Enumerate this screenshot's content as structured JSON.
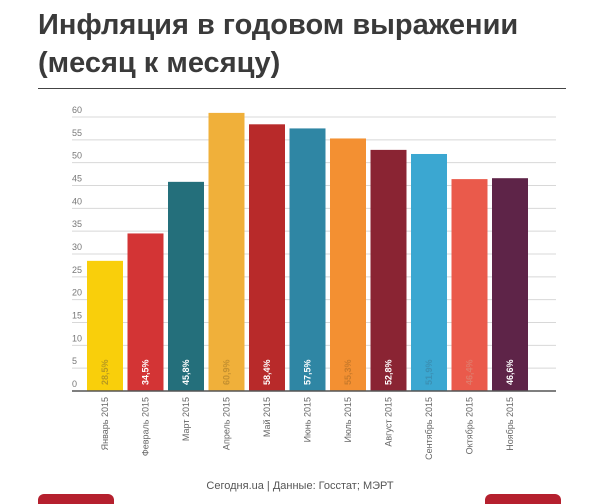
{
  "chart_data": {
    "type": "bar",
    "title": "Инфляция в годовом выражении (месяц к месяцу)",
    "categories": [
      "Январь 2015",
      "Февраль 2015",
      "Март 2015",
      "Апрель 2015",
      "Май 2015",
      "Июнь 2015",
      "Июль 2015",
      "Август 2015",
      "Сентябрь 2015",
      "Октябрь 2015",
      "Ноябрь 2015"
    ],
    "values": [
      28.5,
      34.5,
      45.8,
      60.9,
      58.4,
      57.5,
      55.3,
      52.8,
      51.9,
      46.4,
      46.6
    ],
    "data_labels": [
      "28,5%",
      "34,5%",
      "45,8%",
      "60,9%",
      "58,4%",
      "57,5%",
      "55,3%",
      "52,8%",
      "51,9%",
      "46,4%",
      "46,6%"
    ],
    "colors": [
      "#f9cf0b",
      "#d33435",
      "#246f7b",
      "#f0b03a",
      "#b82a2a",
      "#2f86a4",
      "#f39032",
      "#8a2433",
      "#3ba7d1",
      "#ea5a4b",
      "#5e2448"
    ],
    "label_colors": [
      "#b89a20",
      "#ffffff",
      "#ffffff",
      "#c49030",
      "#ffffff",
      "#ffffff",
      "#c97a2a",
      "#ffffff",
      "#3a90b4",
      "#e07a6a",
      "#ffffff"
    ],
    "ylim": [
      0,
      60
    ],
    "yticks": [
      0,
      5,
      10,
      15,
      20,
      25,
      30,
      35,
      40,
      45,
      50,
      55,
      60
    ],
    "grid": true,
    "xlabel": "",
    "ylabel": ""
  },
  "footer": "Сегодня.ua | Данные: Госстат; МЭРТ"
}
